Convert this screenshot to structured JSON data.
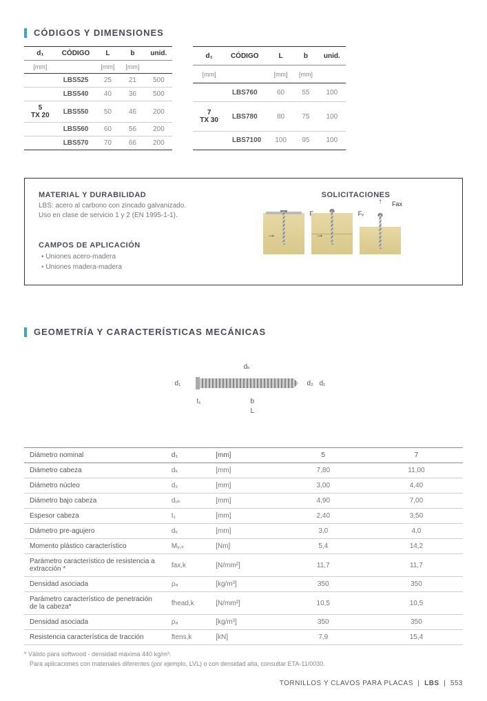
{
  "section1_title": "CÓDIGOS Y DIMENSIONES",
  "section2_title": "GEOMETRÍA Y CARACTERÍSTICAS MECÁNICAS",
  "dim_headers": {
    "d1": "d₁",
    "cod": "CÓDIGO",
    "L": "L",
    "b": "b",
    "unid": "unid."
  },
  "dim_units": {
    "mm": "[mm]"
  },
  "table1": {
    "group": "5\nTX 20",
    "rows": [
      [
        "LBS525",
        "25",
        "21",
        "500"
      ],
      [
        "LBS540",
        "40",
        "36",
        "500"
      ],
      [
        "LBS550",
        "50",
        "46",
        "200"
      ],
      [
        "LBS560",
        "60",
        "56",
        "200"
      ],
      [
        "LBS570",
        "70",
        "66",
        "200"
      ]
    ]
  },
  "table2": {
    "group": "7\nTX 30",
    "rows": [
      [
        "LBS760",
        "60",
        "55",
        "100"
      ],
      [
        "LBS780",
        "80",
        "75",
        "100"
      ],
      [
        "LBS7100",
        "100",
        "95",
        "100"
      ]
    ]
  },
  "info": {
    "material_h": "MATERIAL Y DURABILIDAD",
    "material_p": "LBS: acero al carbono con zincado galvanizado.\nUso en clase de servicio 1 y 2 (EN 1995-1-1).",
    "campos_h": "CAMPOS DE APLICACIÓN",
    "campos_items": [
      "Uniones acero-madera",
      "Uniones madera-madera"
    ],
    "solic_h": "SOLICITACIONES",
    "Fv": "Fᵥ",
    "Fax": "Fax"
  },
  "geom_labels": {
    "dk": "dₖ",
    "d1": "d₁",
    "t1": "t₁",
    "b": "b",
    "L": "L",
    "d2": "d₂"
  },
  "mech": {
    "rows": [
      {
        "desc": "Diámetro nominal",
        "sym": "d₁",
        "unit": "[mm]",
        "v1": "5",
        "v2": "7",
        "hdr": true
      },
      {
        "desc": "Diámetro cabeza",
        "sym": "dₖ",
        "unit": "[mm]",
        "v1": "7,80",
        "v2": "11,00"
      },
      {
        "desc": "Diámetro núcleo",
        "sym": "d₂",
        "unit": "[mm]",
        "v1": "3,00",
        "v2": "4,40"
      },
      {
        "desc": "Diámetro bajo cabeza",
        "sym": "dᵤₖ",
        "unit": "[mm]",
        "v1": "4,90",
        "v2": "7,00"
      },
      {
        "desc": "Espesor cabeza",
        "sym": "t₁",
        "unit": "[mm]",
        "v1": "2,40",
        "v2": "3,50"
      },
      {
        "desc": "Diámetro pre-agujero",
        "sym": "dᵥ",
        "unit": "[mm]",
        "v1": "3,0",
        "v2": "4,0"
      },
      {
        "desc": "Momento plástico característico",
        "sym": "Mᵧ,ₖ",
        "unit": "[Nm]",
        "v1": "5,4",
        "v2": "14,2"
      },
      {
        "desc": "Parámetro característico de resistencia a extracción *",
        "sym": "fax,k",
        "unit": "[N/mm²]",
        "v1": "11,7",
        "v2": "11,7"
      },
      {
        "desc": "Densidad asociada",
        "sym": "ρₐ",
        "unit": "[kg/m³]",
        "v1": "350",
        "v2": "350"
      },
      {
        "desc": "Parámetro característico de penetración de la cabeza*",
        "sym": "fhead,k",
        "unit": "[N/mm²]",
        "v1": "10,5",
        "v2": "10,5"
      },
      {
        "desc": "Densidad asociada",
        "sym": "ρₐ",
        "unit": "[kg/m³]",
        "v1": "350",
        "v2": "350"
      },
      {
        "desc": "Resistencia característica de tracción",
        "sym": "ftens,k",
        "unit": "[kN]",
        "v1": "7,9",
        "v2": "15,4"
      }
    ]
  },
  "footnote1": "* Válido para softwood - densidad máxima 440 kg/m³.",
  "footnote2": "Para aplicaciones con materiales diferentes (por ejemplo, LVL) o con densidad alta, consultar ETA-11/0030.",
  "footer": {
    "txt1": "TORNILLOS Y CLAVOS PARA PLACAS",
    "txt2": "LBS",
    "page": "553"
  }
}
